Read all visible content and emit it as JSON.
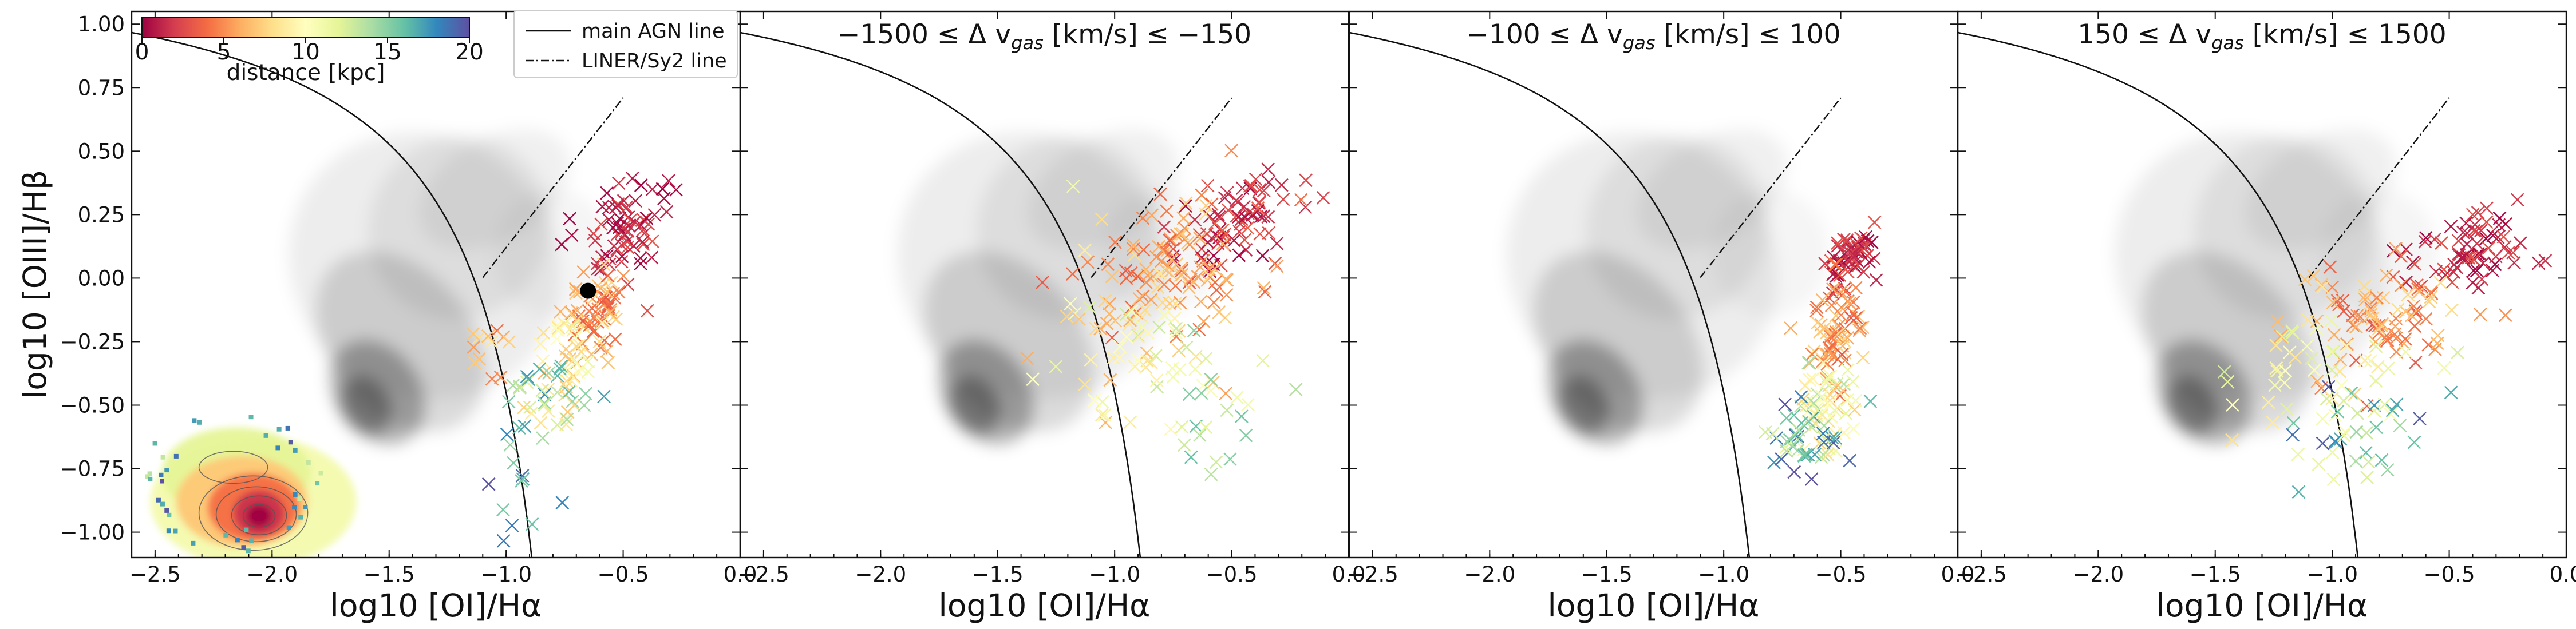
{
  "chart_data": [
    {
      "type": "scatter",
      "title": "",
      "xlabel": "log10 [OI]/Hα",
      "ylabel": "log10 [OIII]/Hβ",
      "xlim": [
        -2.6,
        0.0
      ],
      "ylim": [
        -1.1,
        1.05
      ],
      "x_ticks": [
        "−2.5",
        "−2.0",
        "−1.5",
        "−1.0",
        "−0.5",
        "0.0"
      ],
      "y_ticks": [
        "1.00",
        "0.75",
        "0.50",
        "0.25",
        "0.00",
        "−0.25",
        "−0.50",
        "−0.75",
        "−1.00"
      ],
      "legend": [
        "main AGN line",
        "LINER/Sy2 line"
      ],
      "colorbar": {
        "label": "distance [kpc]",
        "ticks": [
          "0",
          "5",
          "10",
          "15",
          "20"
        ],
        "range": [
          0,
          20
        ]
      },
      "marked_point": {
        "x": -0.65,
        "y": -0.05
      },
      "inset_map": true
    },
    {
      "type": "scatter",
      "title": "−1500 ≤ Δ v",
      "title_sub": "gas",
      "title_end": " [km/s] ≤ −150",
      "xlabel": "log10 [OI]/Hα",
      "xlim": [
        -2.6,
        0.0
      ],
      "ylim": [
        -1.1,
        1.05
      ],
      "x_ticks": [
        "−2.5",
        "−2.0",
        "−1.5",
        "−1.0",
        "−0.5",
        "0.0"
      ]
    },
    {
      "type": "scatter",
      "title": "−100 ≤ Δ v",
      "title_sub": "gas",
      "title_end": " [km/s] ≤ 100",
      "xlabel": "log10 [OI]/Hα",
      "xlim": [
        -2.6,
        0.0
      ],
      "ylim": [
        -1.1,
        1.05
      ],
      "x_ticks": [
        "−2.5",
        "−2.0",
        "−1.5",
        "−1.0",
        "−0.5",
        "0.0"
      ]
    },
    {
      "type": "scatter",
      "title": "150 ≤ Δ v",
      "title_sub": "gas",
      "title_end": " [km/s] ≤ 1500",
      "xlabel": "log10 [OI]/Hα",
      "xlim": [
        -2.6,
        0.0
      ],
      "ylim": [
        -1.1,
        1.05
      ],
      "x_ticks": [
        "−2.5",
        "−2.0",
        "−1.5",
        "−1.0",
        "−0.5",
        "0.0"
      ]
    }
  ]
}
